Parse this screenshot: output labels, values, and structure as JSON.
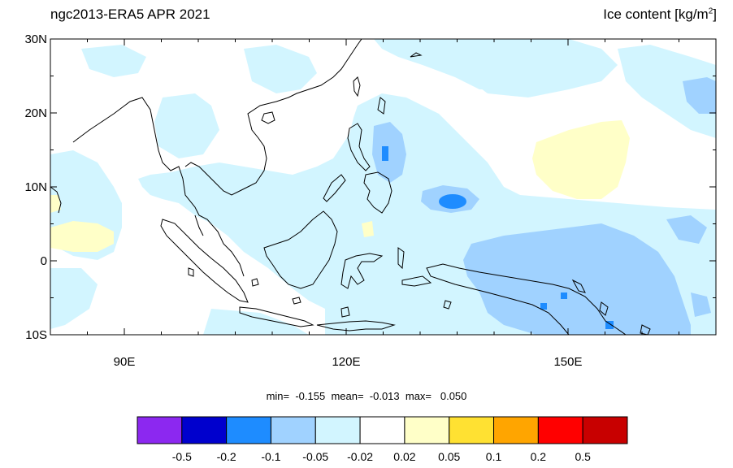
{
  "title_left": "ngc2013-ERA5 APR 2021",
  "title_right": "Ice content  [kg/m",
  "title_right_sup": "2",
  "title_right_end": "]",
  "map": {
    "lon_range": [
      80,
      170
    ],
    "lat_range": [
      -10,
      30
    ],
    "lat_ticks": [
      "30N",
      "20N",
      "10N",
      "0",
      "10S"
    ],
    "lon_ticks": [
      "90E",
      "120E",
      "150E"
    ],
    "anomaly_regions": [
      {
        "name": "west-pacific-positive",
        "class": "0.02 to 0.05",
        "color": "#ffffc8"
      },
      {
        "name": "arabian-sea-positive",
        "class": "0.02 to 0.05",
        "color": "#ffffc8"
      },
      {
        "name": "philippine-sea-negative",
        "class": "-0.2 to -0.1",
        "color": "#1e8cff"
      },
      {
        "name": "new-guinea-negative",
        "class": "-0.1 to -0.05",
        "color": "#a0d2ff"
      }
    ]
  },
  "stats": {
    "text": "min=  -0.155  mean=  -0.013  max=   0.050"
  },
  "colorbar": {
    "colors": [
      "#8c28f0",
      "#0000cd",
      "#1e8cff",
      "#a0d2ff",
      "#d2f5ff",
      "#ffffff",
      "#ffffc8",
      "#ffe132",
      "#ffa500",
      "#ff0000",
      "#c80000"
    ],
    "labels": [
      "-0.5",
      "-0.2",
      "-0.1",
      "-0.05",
      "-0.02",
      "0.02",
      "0.05",
      "0.1",
      "0.2",
      "0.5"
    ]
  }
}
